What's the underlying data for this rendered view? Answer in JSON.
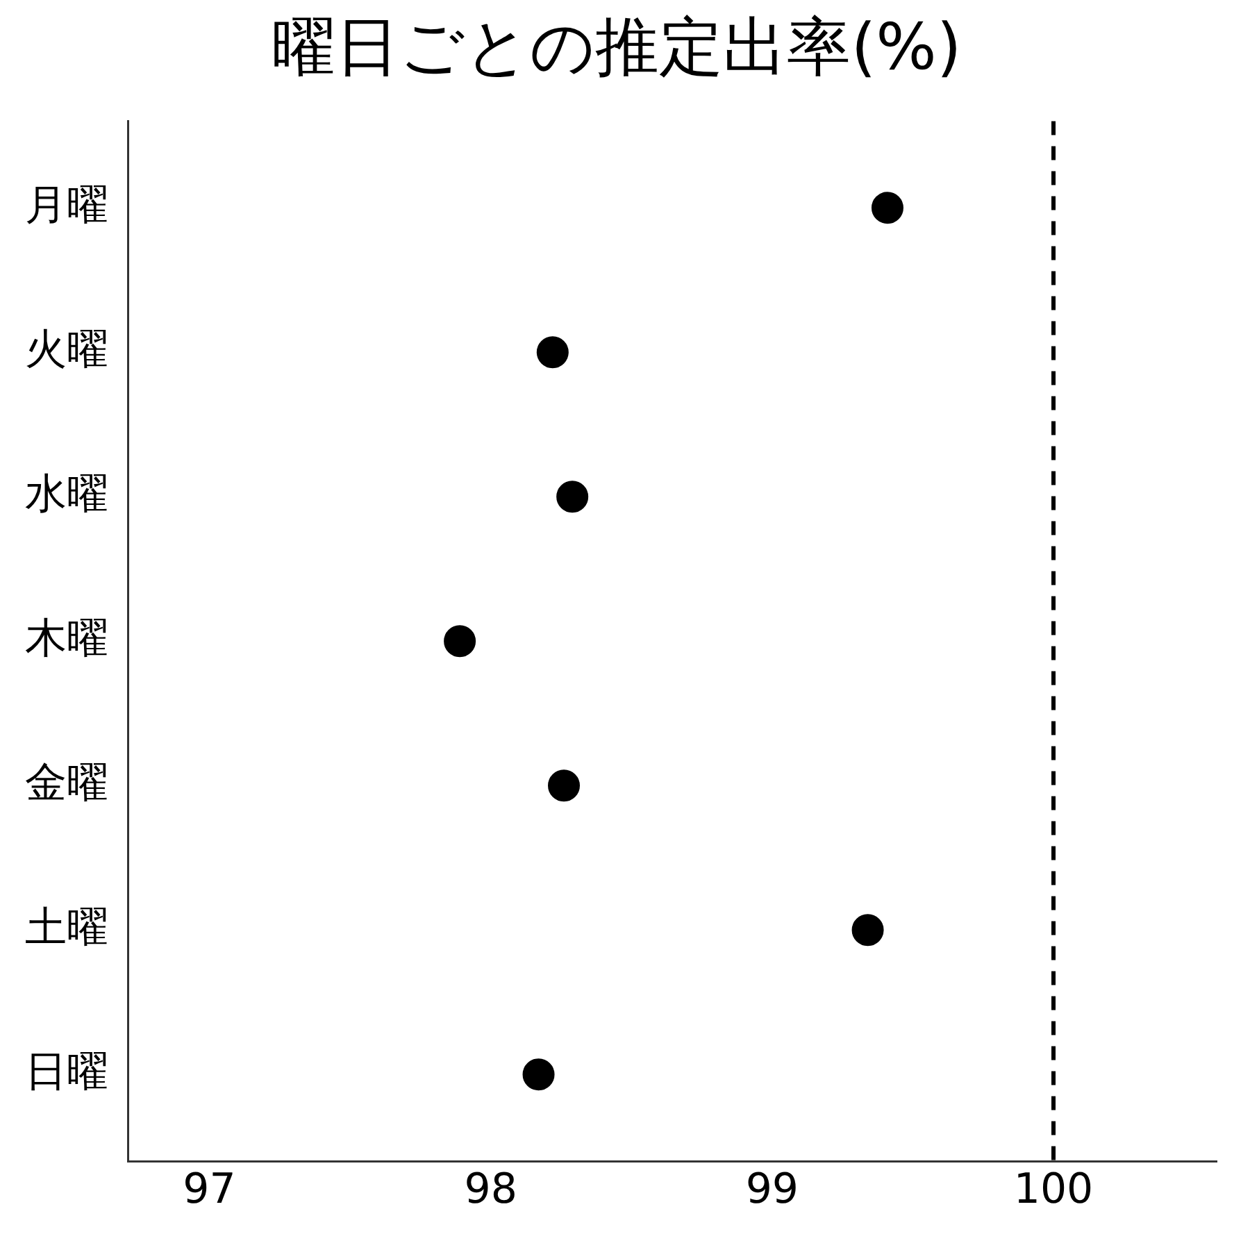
{
  "chart_data": {
    "type": "scatter",
    "title": "曜日ごとの推定出率(%)",
    "orientation": "horizontal",
    "categories": [
      "月曜",
      "火曜",
      "水曜",
      "木曜",
      "金曜",
      "土曜",
      "日曜"
    ],
    "values": [
      99.41,
      98.22,
      98.29,
      97.89,
      98.26,
      99.34,
      98.17
    ],
    "color": "#000000",
    "marker": "circle",
    "xlim": [
      96.71,
      100.58
    ],
    "xticks": [
      97,
      98,
      99,
      100
    ],
    "ref_lines": [
      {
        "axis": "x",
        "value": 100,
        "color": "#000000",
        "line_style": "dashed"
      }
    ],
    "grid": false,
    "legend": false
  }
}
